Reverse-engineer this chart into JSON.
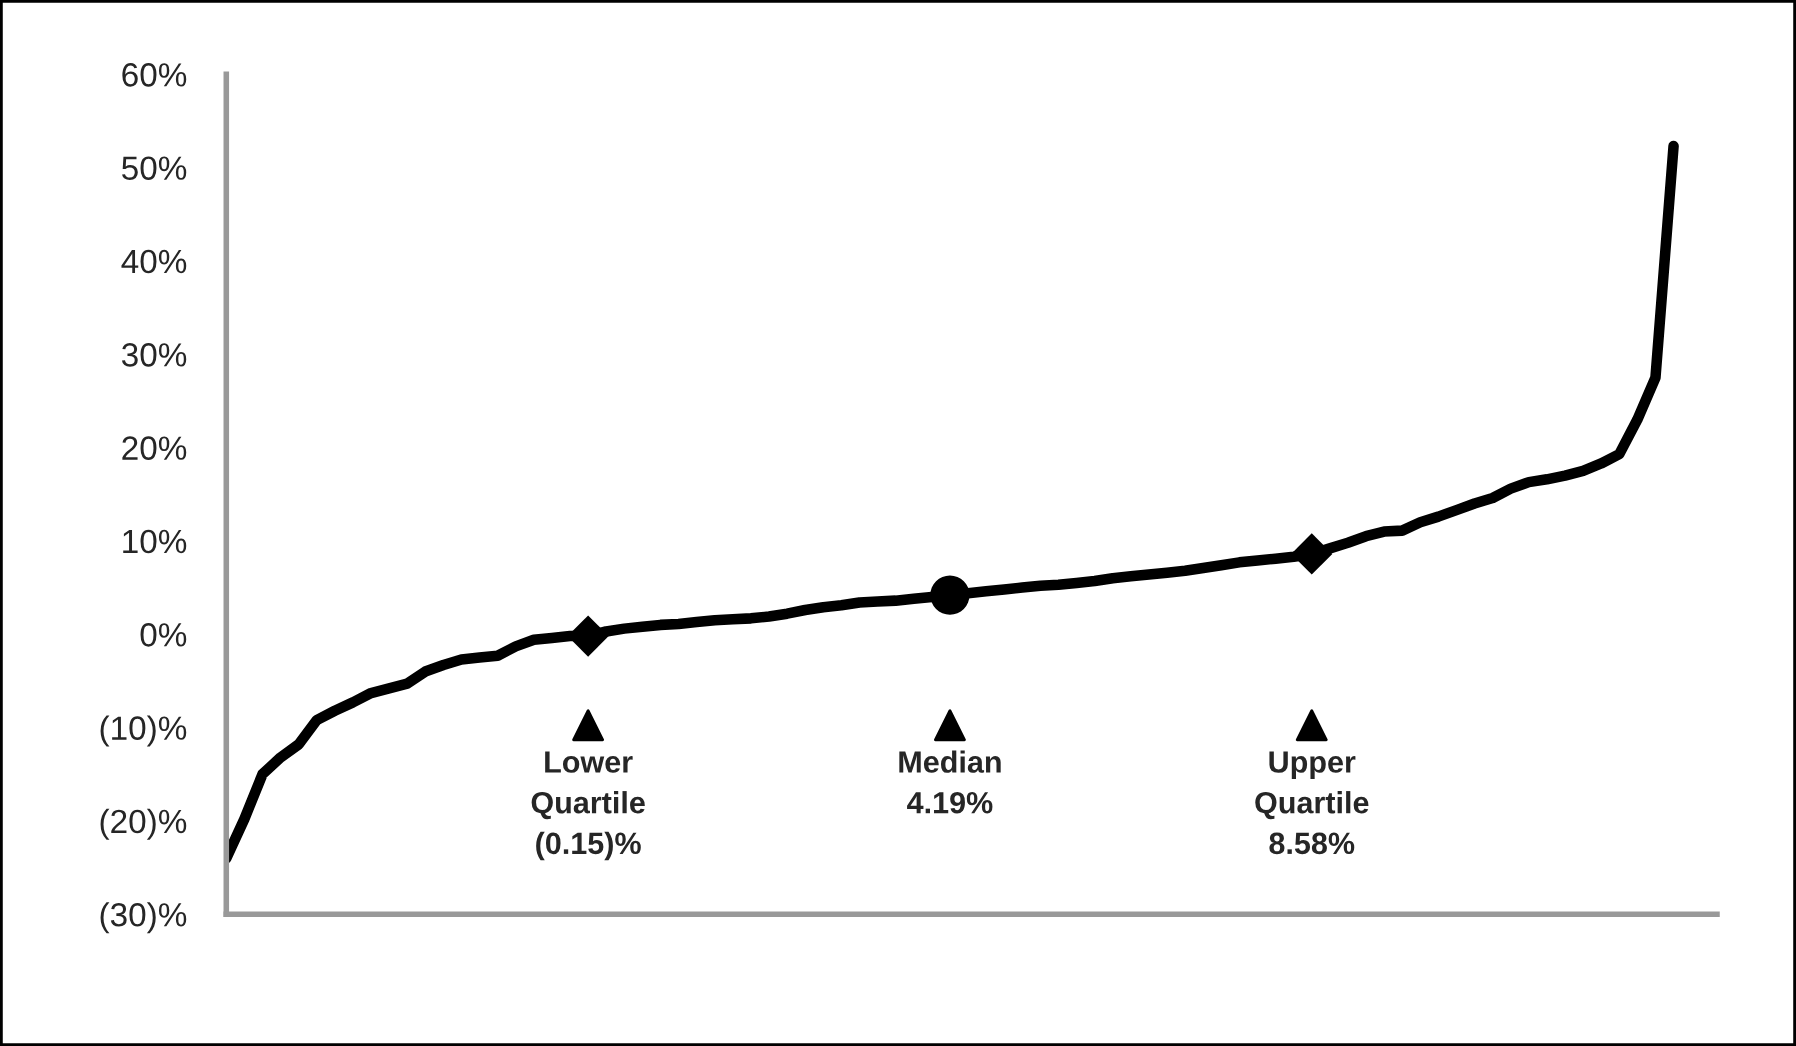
{
  "chart_data": {
    "type": "line",
    "categories": [
      null,
      null,
      null,
      null,
      null,
      null,
      null,
      null,
      null,
      null,
      null,
      null,
      null,
      null,
      null,
      null,
      null,
      null,
      null,
      null,
      null,
      null,
      null,
      null,
      null,
      null,
      null,
      null,
      null,
      null,
      null,
      null,
      null,
      null,
      null,
      null,
      null,
      null,
      null,
      null,
      null,
      null,
      null,
      null,
      null,
      null,
      null,
      null,
      null,
      null,
      null,
      null,
      null,
      null,
      null,
      null,
      null,
      null,
      null,
      null,
      null,
      null,
      null,
      null,
      null,
      null,
      null,
      null,
      null,
      null,
      null,
      null,
      null,
      null,
      null,
      null,
      null,
      null,
      null,
      null,
      null
    ],
    "series": [
      {
        "color": "#000000",
        "marker": "none",
        "values": [
          -24,
          -19.8,
          -15.0,
          -13.2,
          -11.8,
          -9.2,
          -8.2,
          -7.3,
          -6.3,
          -5.8,
          -5.3,
          -4.0,
          -3.3,
          -2.7,
          -2.5,
          -2.3,
          -1.3,
          -0.6,
          -0.4,
          -0.2,
          -0.2,
          0.3,
          0.6,
          0.8,
          1.0,
          1.1,
          1.3,
          1.5,
          1.6,
          1.7,
          1.9,
          2.2,
          2.6,
          2.9,
          3.1,
          3.4,
          3.5,
          3.6,
          3.8,
          4.0,
          4.2,
          4.4,
          4.6,
          4.8,
          5.0,
          5.2,
          5.3,
          5.5,
          5.7,
          6.0,
          6.2,
          6.4,
          6.6,
          6.8,
          7.1,
          7.4,
          7.7,
          7.9,
          8.1,
          8.3,
          8.6,
          9.2,
          9.8,
          10.5,
          11.0,
          11.1,
          12.0,
          12.6,
          13.3,
          14.0,
          14.6,
          15.6,
          16.3,
          16.6,
          17.0,
          17.5,
          18.3,
          19.3,
          23.0,
          27.5,
          52.3
        ]
      },
      {
        "type": "scatter",
        "color": "#000000",
        "marker": "diamond",
        "values": [
          null,
          null,
          null,
          null,
          null,
          null,
          null,
          null,
          null,
          null,
          null,
          null,
          null,
          null,
          null,
          null,
          null,
          null,
          null,
          null,
          -0.2,
          null,
          null,
          null,
          null,
          null,
          null,
          null,
          null,
          null,
          null,
          null,
          null,
          null,
          null,
          null,
          null,
          null,
          null,
          null,
          null,
          null,
          null,
          null,
          null,
          null,
          null,
          null,
          null,
          null,
          null,
          null,
          null,
          null,
          null,
          null,
          null,
          null,
          null,
          null,
          8.6,
          null,
          null,
          null,
          null,
          null,
          null,
          null,
          null,
          null,
          null,
          null,
          null,
          null,
          null,
          null,
          null,
          null,
          null,
          null,
          null
        ]
      },
      {
        "type": "scatter",
        "color": "#000000",
        "marker": "circle",
        "values": [
          null,
          null,
          null,
          null,
          null,
          null,
          null,
          null,
          null,
          null,
          null,
          null,
          null,
          null,
          null,
          null,
          null,
          null,
          null,
          null,
          null,
          null,
          null,
          null,
          null,
          null,
          null,
          null,
          null,
          null,
          null,
          null,
          null,
          null,
          null,
          null,
          null,
          null,
          null,
          null,
          4.2,
          null,
          null,
          null,
          null,
          null,
          null,
          null,
          null,
          null,
          null,
          null,
          null,
          null,
          null,
          null,
          null,
          null,
          null,
          null,
          null,
          null,
          null,
          null,
          null,
          null,
          null,
          null,
          null,
          null,
          null,
          null,
          null,
          null,
          null,
          null,
          null,
          null,
          null,
          null,
          null
        ]
      }
    ],
    "annotations": [
      "Lower\nQuartile\n(0.15)%",
      "Median\n4.19%",
      "Upper\nQuartile\n8.58%"
    ],
    "ylim": [
      -30,
      60
    ],
    "yticks": [
      {
        "value": -30,
        "label": "(30)%"
      },
      {
        "value": -20,
        "label": "(20)%"
      },
      {
        "value": -10,
        "label": "(10)%"
      },
      {
        "value": 0,
        "label": "0%"
      },
      {
        "value": 10,
        "label": "10%"
      },
      {
        "value": 20,
        "label": "20%"
      },
      {
        "value": 30,
        "label": "30%"
      },
      {
        "value": 40,
        "label": "40%"
      },
      {
        "value": 50,
        "label": "50%"
      },
      {
        "value": 60,
        "label": "60%"
      }
    ],
    "grid": false
  }
}
